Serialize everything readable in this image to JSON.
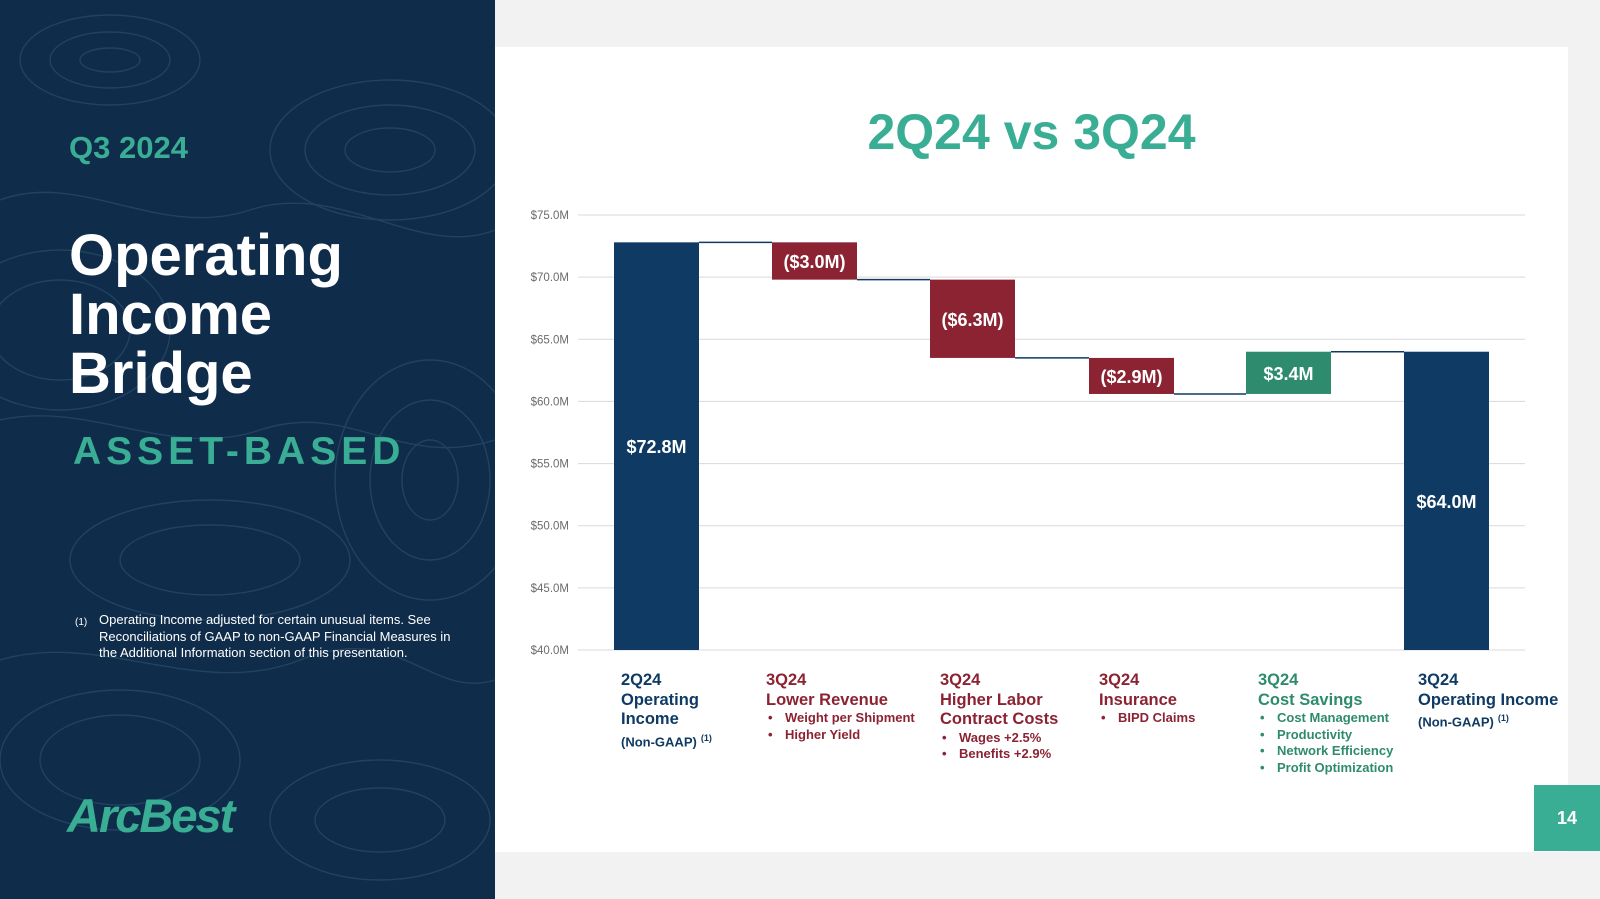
{
  "sidebar": {
    "period": "Q3 2024",
    "title_lines": [
      "Operating",
      "Income",
      "Bridge"
    ],
    "segment": "ASSET-BASED",
    "footnote_mark": "(1)",
    "footnote_text": "Operating Income adjusted for certain unusual items. See Reconciliations of GAAP to non-GAAP Financial Measures in the Additional Information section of this presentation.",
    "logo": "ArcBest"
  },
  "page_number": "14",
  "colors": {
    "navy": "#0f3a63",
    "red": "#8b2332",
    "green": "#2e8b6e",
    "accent": "#3aae94",
    "dark_bg": "#0f2d4a"
  },
  "chart_data": {
    "type": "waterfall",
    "title": "2Q24 vs 3Q24",
    "units": "$M",
    "ylim": [
      40,
      75
    ],
    "y_ticks": [
      40,
      45,
      50,
      55,
      60,
      65,
      70,
      75
    ],
    "y_tick_labels": [
      "$40.0M",
      "$45.0M",
      "$50.0M",
      "$55.0M",
      "$60.0M",
      "$65.0M",
      "$70.0M",
      "$75.0M"
    ],
    "grid": true,
    "steps": [
      {
        "kind": "total",
        "value": 72.8,
        "label": "$72.8M",
        "color": "navy",
        "category": {
          "period": "2Q24",
          "name": "Operating Income",
          "sub": "(Non-GAAP)",
          "sup": "(1)",
          "bullets": []
        }
      },
      {
        "kind": "delta",
        "value": -3.0,
        "label": "($3.0M)",
        "color": "red",
        "category": {
          "period": "3Q24",
          "name": "Lower Revenue",
          "bullets": [
            "Weight per Shipment",
            "Higher Yield"
          ]
        }
      },
      {
        "kind": "delta",
        "value": -6.3,
        "label": "($6.3M)",
        "color": "red",
        "category": {
          "period": "3Q24",
          "name": "Higher Labor Contract Costs",
          "bullets": [
            "Wages +2.5%",
            "Benefits +2.9%"
          ]
        }
      },
      {
        "kind": "delta",
        "value": -2.9,
        "label": "($2.9M)",
        "color": "red",
        "category": {
          "period": "3Q24",
          "name": "Insurance",
          "bullets": [
            "BIPD Claims"
          ]
        }
      },
      {
        "kind": "delta",
        "value": 3.4,
        "label": "$3.4M",
        "color": "green",
        "category": {
          "period": "3Q24",
          "name": "Cost Savings",
          "bullets": [
            "Cost Management",
            "Productivity",
            "Network Efficiency",
            "Profit Optimization"
          ]
        }
      },
      {
        "kind": "total",
        "value": 64.0,
        "label": "$64.0M",
        "color": "navy",
        "category": {
          "period": "3Q24",
          "name": "Operating Income",
          "sub": "(Non-GAAP)",
          "sup": "(1)",
          "bullets": []
        }
      }
    ]
  }
}
